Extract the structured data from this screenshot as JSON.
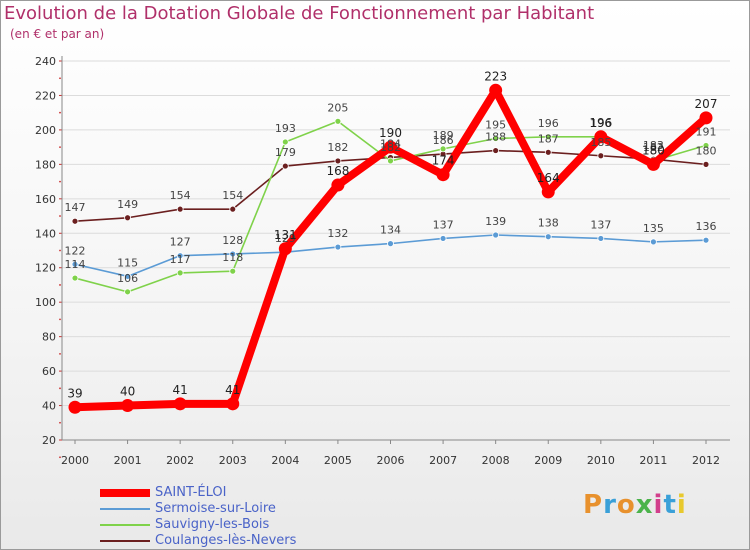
{
  "header": {
    "title": "Evolution de la Dotation Globale de Fonctionnement par Habitant",
    "subtitle": "(en € et par an)"
  },
  "logo": {
    "text": "Proxiti",
    "colors": [
      "#e8912d",
      "#3aa0d8",
      "#e8912d",
      "#4bb34b",
      "#d23f8c",
      "#3aa0d8",
      "#e8c92d"
    ]
  },
  "chart_data": {
    "type": "line",
    "title": "Evolution de la Dotation Globale de Fonctionnement par Habitant",
    "subtitle": "(en € et par an)",
    "xlabel": "",
    "ylabel": "",
    "ylim": [
      20,
      240
    ],
    "yticks": [
      20,
      40,
      60,
      80,
      100,
      120,
      140,
      160,
      180,
      200,
      220,
      240
    ],
    "categories": [
      "2000",
      "2001",
      "2002",
      "2003",
      "2004",
      "2005",
      "2006",
      "2007",
      "2008",
      "2009",
      "2010",
      "2011",
      "2012"
    ],
    "grid": "horizontal",
    "legend": "bottom-left",
    "series": [
      {
        "name": "SAINT-ÉLOI",
        "color": "#ff0000",
        "values": [
          39,
          40,
          41,
          41,
          131,
          168,
          190,
          174,
          223,
          164,
          196,
          180,
          207
        ]
      },
      {
        "name": "Sermoise-sur-Loire",
        "color": "#5b9bd5",
        "values": [
          122,
          115,
          127,
          128,
          129,
          132,
          134,
          137,
          139,
          138,
          137,
          135,
          136
        ]
      },
      {
        "name": "Sauvigny-les-Bois",
        "color": "#7fd24a",
        "values": [
          114,
          106,
          117,
          118,
          193,
          205,
          182,
          189,
          195,
          196,
          196,
          182,
          191
        ]
      },
      {
        "name": "Coulanges-lès-Nevers",
        "color": "#6b1f1f",
        "values": [
          147,
          149,
          154,
          154,
          179,
          182,
          184,
          186,
          188,
          187,
          185,
          183,
          180
        ]
      }
    ]
  }
}
